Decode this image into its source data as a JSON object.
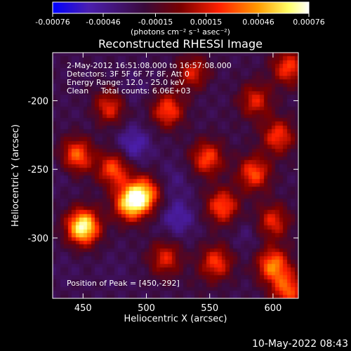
{
  "colorbar": {
    "tick_labels": [
      "-0.00076",
      "-0.00046",
      "-0.00015",
      "0.00015",
      "0.00046",
      "0.00076"
    ],
    "tick_values": [
      -0.00076,
      -0.00046,
      -0.00015,
      0.00015,
      0.00046,
      0.00076
    ],
    "range": [
      -0.00076,
      0.00076
    ],
    "unit_label": "(photons cm⁻² s⁻¹ asec⁻²)",
    "colors": [
      "#0000ff",
      "#4b1fb0",
      "#3a0a3a",
      "#7a0000",
      "#ff2000",
      "#ff9a00",
      "#ffff66",
      "#ffffff"
    ]
  },
  "chart_data": {
    "type": "heatmap",
    "title": "Reconstructed RHESSI Image",
    "xlabel": "Heliocentric X (arcsec)",
    "ylabel": "Heliocentric Y (arcsec)",
    "xlim": [
      426,
      620
    ],
    "ylim": [
      -344,
      -165
    ],
    "x_ticks": [
      450,
      500,
      550,
      600
    ],
    "y_ticks": [
      -200,
      -250,
      -300
    ],
    "x_tick_labels": [
      "450",
      "500",
      "550",
      "600"
    ],
    "y_tick_labels": [
      "-200",
      "-250",
      "-300"
    ],
    "peak": [
      450,
      -292
    ],
    "blobs": [
      {
        "x": 450,
        "y": -292,
        "value": 0.00074
      },
      {
        "x": 487,
        "y": -275,
        "value": 0.00052
      },
      {
        "x": 498,
        "y": -268,
        "value": 0.00045
      },
      {
        "x": 474,
        "y": -250,
        "value": 0.0003
      },
      {
        "x": 445,
        "y": -240,
        "value": 0.00035
      },
      {
        "x": 560,
        "y": -277,
        "value": 0.0003
      },
      {
        "x": 585,
        "y": -253,
        "value": 0.0003
      },
      {
        "x": 548,
        "y": -242,
        "value": 0.00028
      },
      {
        "x": 600,
        "y": -320,
        "value": 0.0004
      },
      {
        "x": 555,
        "y": -318,
        "value": 0.00025
      },
      {
        "x": 517,
        "y": -207,
        "value": 0.00028
      },
      {
        "x": 470,
        "y": -205,
        "value": 0.00022
      },
      {
        "x": 604,
        "y": -226,
        "value": 0.00025
      },
      {
        "x": 586,
        "y": -200,
        "value": 0.00018
      },
      {
        "x": 612,
        "y": -176,
        "value": 0.00026
      },
      {
        "x": 537,
        "y": -180,
        "value": 0.00018
      },
      {
        "x": 612,
        "y": -338,
        "value": 0.0003
      },
      {
        "x": 600,
        "y": -288,
        "value": 0.0002
      },
      {
        "x": 515,
        "y": -315,
        "value": 0.00018
      },
      {
        "x": 490,
        "y": -232,
        "value": -0.00055
      },
      {
        "x": 525,
        "y": -285,
        "value": -0.00052
      },
      {
        "x": 522,
        "y": -258,
        "value": -0.00038
      },
      {
        "x": 490,
        "y": -192,
        "value": -0.00035
      },
      {
        "x": 545,
        "y": -188,
        "value": -0.0003
      },
      {
        "x": 460,
        "y": -210,
        "value": -0.00032
      },
      {
        "x": 433,
        "y": -250,
        "value": -0.00035
      },
      {
        "x": 435,
        "y": -322,
        "value": -0.0003
      },
      {
        "x": 475,
        "y": -325,
        "value": -0.0003
      },
      {
        "x": 580,
        "y": -298,
        "value": -0.00035
      },
      {
        "x": 565,
        "y": -220,
        "value": -0.00025
      },
      {
        "x": 540,
        "y": -335,
        "value": -0.00022
      }
    ]
  },
  "annotations": {
    "time_range": "2-May-2012 16:51:08.000 to 16:57:08.000",
    "detectors": "Detectors: 3F 5F 6F 7F 8F, Att 0",
    "energy": "Energy Range: 12.0 - 25.0 keV",
    "clean": "Clean     Total counts: 6.06E+03",
    "peak_label": "Position of Peak = [450,-292]"
  },
  "footer": {
    "timestamp": "10-May-2022 08:43"
  }
}
